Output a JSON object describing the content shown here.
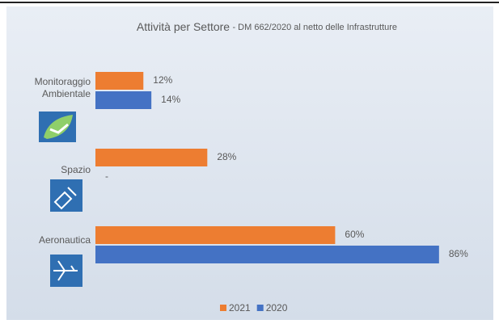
{
  "chart_data": {
    "type": "bar",
    "orientation": "horizontal",
    "title": "Attività per Settore",
    "subtitle": "- DM 662/2020 al netto delle Infrastrutture",
    "categories": [
      "Monitoraggio Ambientale",
      "Spazio",
      "Aeronautica"
    ],
    "series": [
      {
        "name": "2021",
        "color": "#ed7d31",
        "values": [
          12,
          28,
          60
        ],
        "value_labels": [
          "12%",
          "28%",
          "60%"
        ]
      },
      {
        "name": "2020",
        "color": "#4472c4",
        "values": [
          14,
          null,
          86
        ],
        "value_labels": [
          "14%",
          "-",
          "86%"
        ]
      }
    ],
    "legend": "bottom"
  }
}
